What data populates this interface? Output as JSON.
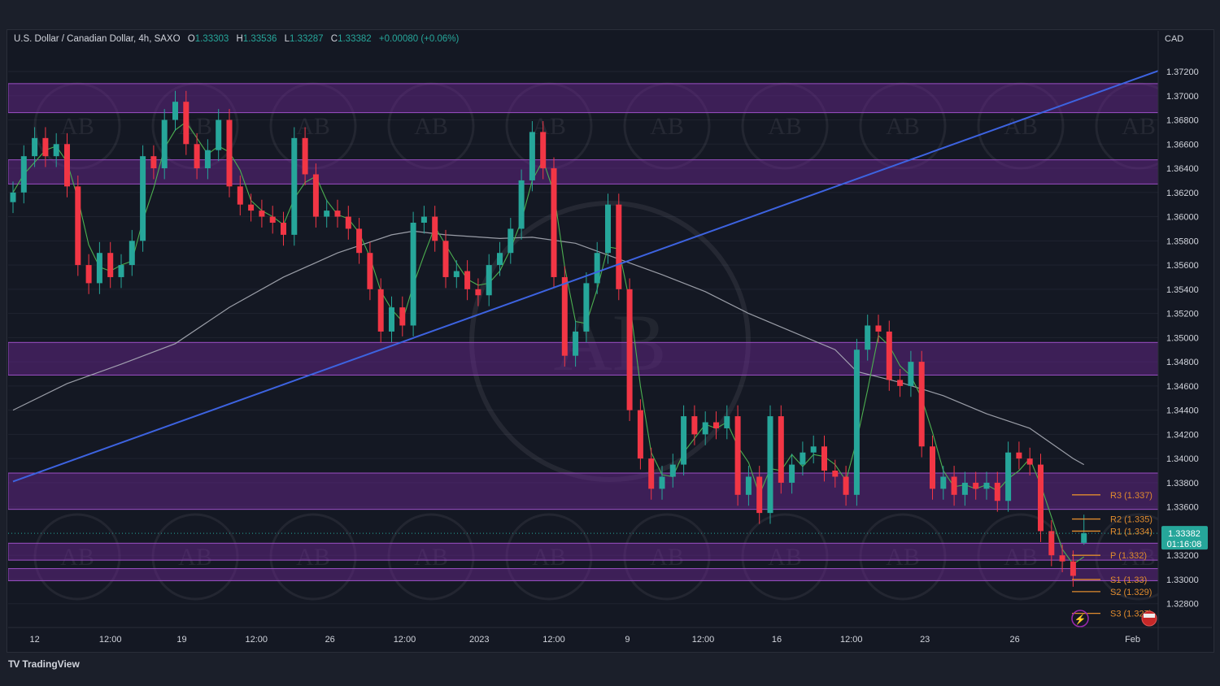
{
  "header": {
    "symbol": "U.S. Dollar / Canadian Dollar, 4h, SAXO",
    "open_label": "O",
    "open": "1.33303",
    "high_label": "H",
    "high": "1.33536",
    "low_label": "L",
    "low": "1.33287",
    "close_label": "C",
    "close": "1.33382",
    "change": "+0.00080 (+0.06%)",
    "currency": "CAD"
  },
  "brand": {
    "name": "TradingView",
    "logo": "TV"
  },
  "watermark": "AB",
  "colors": {
    "background": "#141823",
    "up": "#26a69a",
    "down": "#f23645",
    "zone": "#5b2a78",
    "trendline": "#3d63e0",
    "fast_ma": "#4caf50",
    "slow_ma": "#b2b5be",
    "pivot": "#e08b2e",
    "last_price": "#26a69a"
  },
  "chart_data": {
    "type": "candlestick",
    "title": "U.S. Dollar / Canadian Dollar, 4h, SAXO",
    "ylim": [
      1.3268,
      1.3745
    ],
    "y_ticks": [
      "1.37200",
      "1.37000",
      "1.36800",
      "1.36600",
      "1.36400",
      "1.36200",
      "1.36000",
      "1.35800",
      "1.35600",
      "1.35400",
      "1.35200",
      "1.35000",
      "1.34800",
      "1.34600",
      "1.34400",
      "1.34200",
      "1.34000",
      "1.33800",
      "1.33600",
      "1.33200",
      "1.33000",
      "1.32800"
    ],
    "x_ticks": [
      {
        "label": "12",
        "i": 2
      },
      {
        "label": "12:00",
        "i": 9
      },
      {
        "label": "19",
        "i": 15.6
      },
      {
        "label": "12:00",
        "i": 22.5
      },
      {
        "label": "26",
        "i": 29.3
      },
      {
        "label": "12:00",
        "i": 36.2
      },
      {
        "label": "2023",
        "i": 43.1
      },
      {
        "label": "12:00",
        "i": 50
      },
      {
        "label": "9",
        "i": 56.8
      },
      {
        "label": "12:00",
        "i": 63.8
      },
      {
        "label": "16",
        "i": 70.6
      },
      {
        "label": "12:00",
        "i": 77.5
      },
      {
        "label": "23",
        "i": 84.3
      },
      {
        "label": "26",
        "i": 92.6
      },
      {
        "label": "Feb",
        "i": 103.5
      }
    ],
    "closes": [
      1.362,
      1.365,
      1.3665,
      1.365,
      1.366,
      1.3625,
      1.356,
      1.3545,
      1.357,
      1.355,
      1.356,
      1.358,
      1.365,
      1.364,
      1.368,
      1.3695,
      1.366,
      1.364,
      1.3655,
      1.368,
      1.3625,
      1.361,
      1.3605,
      1.36,
      1.3595,
      1.3585,
      1.3665,
      1.3635,
      1.36,
      1.3605,
      1.36,
      1.359,
      1.357,
      1.354,
      1.3505,
      1.3525,
      1.351,
      1.3595,
      1.36,
      1.358,
      1.355,
      1.3555,
      1.354,
      1.3535,
      1.356,
      1.357,
      1.359,
      1.363,
      1.367,
      1.364,
      1.355,
      1.3485,
      1.3505,
      1.3545,
      1.357,
      1.361,
      1.354,
      1.344,
      1.34,
      1.3375,
      1.3385,
      1.3395,
      1.3435,
      1.342,
      1.343,
      1.3425,
      1.3435,
      1.337,
      1.3385,
      1.3355,
      1.3435,
      1.338,
      1.3395,
      1.3405,
      1.341,
      1.339,
      1.3385,
      1.337,
      1.349,
      1.351,
      1.3505,
      1.3465,
      1.346,
      1.348,
      1.341,
      1.3375,
      1.3385,
      1.337,
      1.338,
      1.3375,
      1.338,
      1.3365,
      1.3405,
      1.34,
      1.3395,
      1.334,
      1.332,
      1.3315,
      1.3303,
      1.33382
    ],
    "last_candle": {
      "open": 1.33303,
      "high": 1.33536,
      "low": 1.33287,
      "close": 1.33382
    },
    "slow_ma": [
      [
        0,
        1.344
      ],
      [
        5,
        1.3462
      ],
      [
        10,
        1.3478
      ],
      [
        15,
        1.3495
      ],
      [
        20,
        1.3525
      ],
      [
        25,
        1.355
      ],
      [
        30,
        1.357
      ],
      [
        35,
        1.3585
      ],
      [
        37,
        1.3588
      ],
      [
        40,
        1.3585
      ],
      [
        45,
        1.3582
      ],
      [
        48,
        1.3583
      ],
      [
        52,
        1.3578
      ],
      [
        56,
        1.3565
      ],
      [
        60,
        1.3552
      ],
      [
        64,
        1.3538
      ],
      [
        68,
        1.352
      ],
      [
        72,
        1.3505
      ],
      [
        76,
        1.349
      ],
      [
        78,
        1.3472
      ],
      [
        82,
        1.3463
      ],
      [
        86,
        1.3452
      ],
      [
        90,
        1.3437
      ],
      [
        94,
        1.3425
      ],
      [
        98,
        1.34
      ],
      [
        99,
        1.3395
      ]
    ],
    "trendline": [
      [
        0,
        1.3381
      ],
      [
        106,
        1.3721
      ]
    ],
    "zones": [
      [
        1.371,
        1.3686
      ],
      [
        1.3647,
        1.3627
      ],
      [
        1.3496,
        1.3469
      ],
      [
        1.3388,
        1.3358
      ],
      [
        1.333,
        1.3316
      ],
      [
        1.3309,
        1.3299
      ]
    ],
    "pivots": [
      {
        "label": "R3 (1.337)",
        "value": 1.337
      },
      {
        "label": "R2 (1.335)",
        "value": 1.335
      },
      {
        "label": "R1 (1.334)",
        "value": 1.334
      },
      {
        "label": "P (1.332)",
        "value": 1.332
      },
      {
        "label": "S1 (1.33)",
        "value": 1.33
      },
      {
        "label": "S2 (1.329)",
        "value": 1.329
      },
      {
        "label": "S3 (1.327)",
        "value": 1.3272
      }
    ],
    "last_price_label": "1.33382",
    "countdown": "01:16:08"
  }
}
